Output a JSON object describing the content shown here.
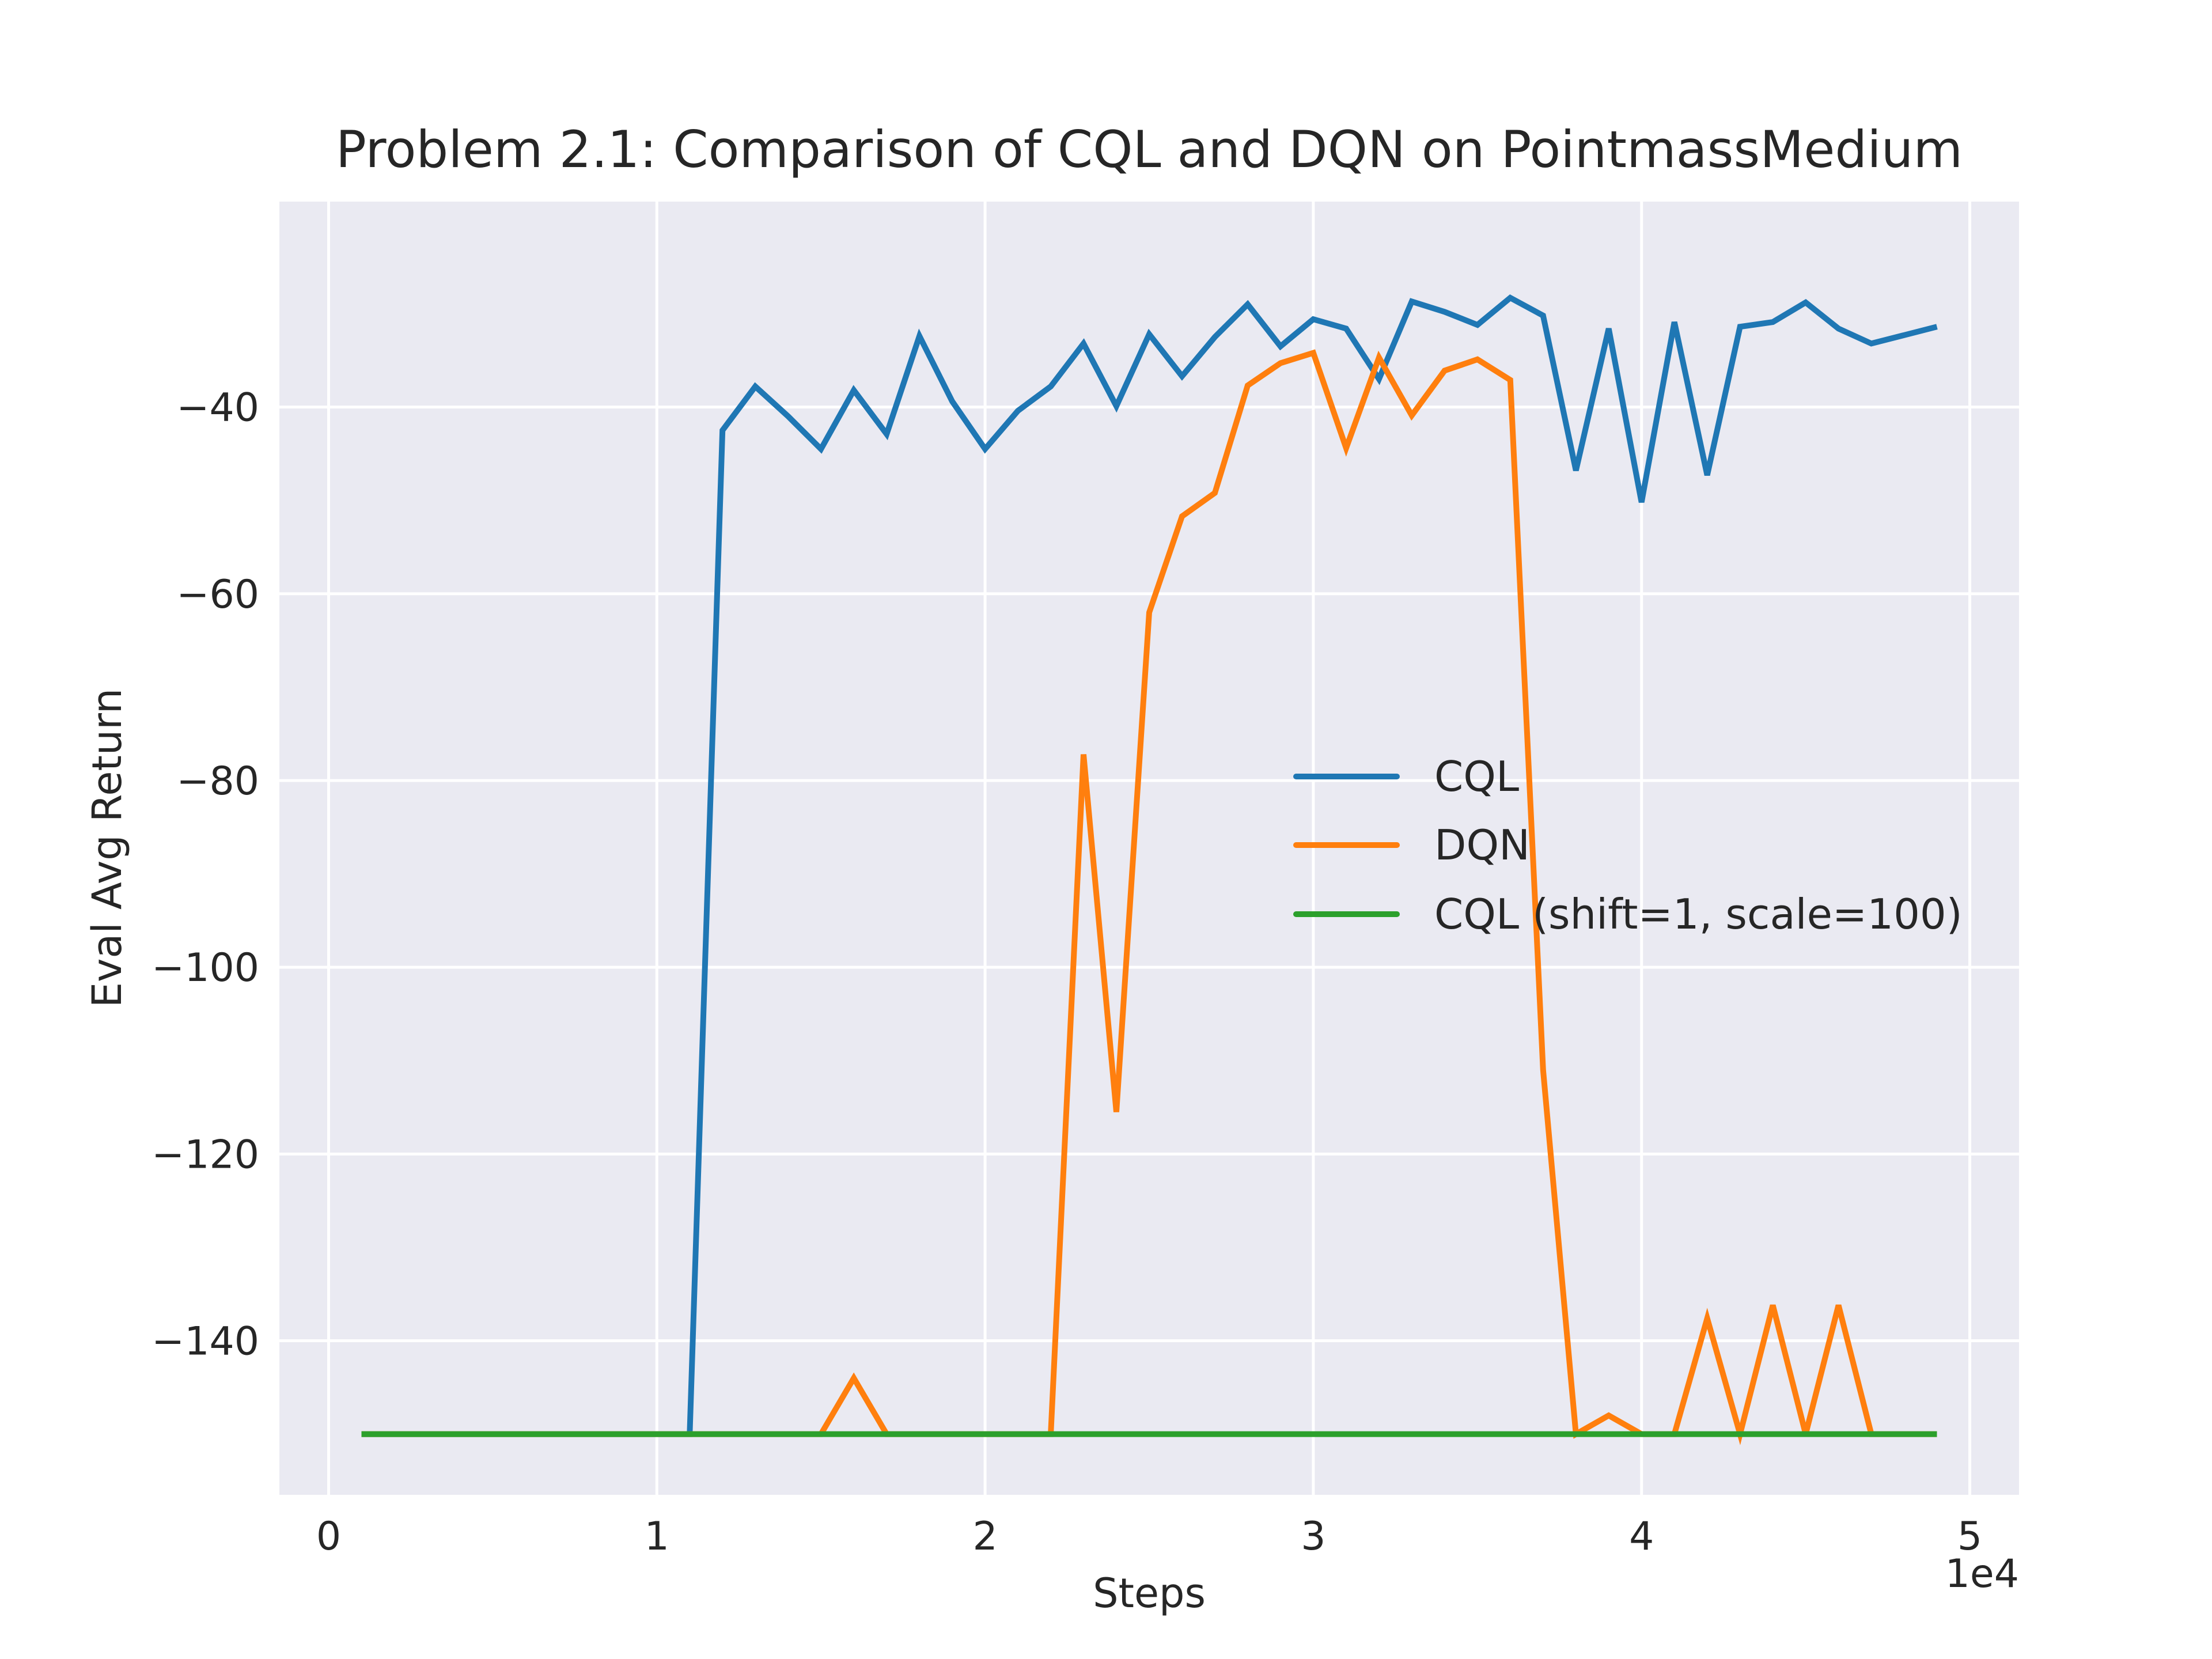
{
  "chart_data": {
    "type": "line",
    "title": "Problem 2.1: Comparison of CQL and DQN on PointmassMedium",
    "xlabel": "Steps",
    "ylabel": "Eval Avg Return",
    "x_offset_text": "1e4",
    "xlim": [
      -0.15,
      5.15
    ],
    "ylim": [
      -156.5,
      -18
    ],
    "xticks": [
      0,
      1,
      2,
      3,
      4,
      5
    ],
    "xtick_labels": [
      "0",
      "1",
      "2",
      "3",
      "4",
      "5"
    ],
    "yticks": [
      -140,
      -120,
      -100,
      -80,
      -60,
      -40
    ],
    "ytick_labels": [
      "−140",
      "−120",
      "−100",
      "−80",
      "−60",
      "−40"
    ],
    "grid": true,
    "legend_position": "center-right",
    "x": [
      0.1,
      0.2,
      0.3,
      0.4,
      0.5,
      0.6,
      0.7,
      0.8,
      0.9,
      1.0,
      1.1,
      1.2,
      1.3,
      1.4,
      1.5,
      1.6,
      1.7,
      1.8,
      1.9,
      2.0,
      2.1,
      2.2,
      2.3,
      2.4,
      2.5,
      2.6,
      2.7,
      2.8,
      2.9,
      3.0,
      3.1,
      3.2,
      3.3,
      3.4,
      3.5,
      3.6,
      3.7,
      3.8,
      3.9,
      4.0,
      4.1,
      4.2,
      4.3,
      4.4,
      4.5,
      4.6,
      4.7,
      4.8,
      4.9
    ],
    "series": [
      {
        "name": "CQL",
        "color": "#1f77b4",
        "values": [
          -150,
          -150,
          -150,
          -150,
          -150,
          -150,
          -150,
          -150,
          -150,
          -150,
          -150,
          -42.5,
          -37.8,
          -41.0,
          -44.5,
          -38.2,
          -42.9,
          -32.4,
          -39.4,
          -44.5,
          -40.4,
          -37.8,
          -33.2,
          -39.9,
          -32.2,
          -36.7,
          -32.5,
          -29.0,
          -33.5,
          -30.6,
          -31.6,
          -37.0,
          -28.7,
          -29.8,
          -31.2,
          -28.3,
          -30.2,
          -46.8,
          -31.6,
          -50.2,
          -30.9,
          -47.3,
          -31.4,
          -30.9,
          -28.8,
          -31.6,
          -33.2,
          -32.3,
          -31.4
        ]
      },
      {
        "name": "DQN",
        "color": "#ff7f0e",
        "values": [
          -150,
          -150,
          -150,
          -150,
          -150,
          -150,
          -150,
          -150,
          -150,
          -150,
          -150,
          -150,
          -150,
          -150,
          -150,
          -144.0,
          -150,
          -150,
          -150,
          -150,
          -150,
          -150,
          -77.2,
          -115.5,
          -62.0,
          -51.7,
          -49.2,
          -37.7,
          -35.3,
          -34.2,
          -44.4,
          -34.7,
          -40.9,
          -36.1,
          -34.9,
          -37.1,
          -111.0,
          -150,
          -148.0,
          -150,
          -150,
          -137.6,
          -150,
          -136.2,
          -150,
          -136.2,
          -150,
          -150,
          -150
        ]
      },
      {
        "name": "CQL (shift=1, scale=100)",
        "color": "#2ca02c",
        "values": [
          -150,
          -150,
          -150,
          -150,
          -150,
          -150,
          -150,
          -150,
          -150,
          -150,
          -150,
          -150,
          -150,
          -150,
          -150,
          -150,
          -150,
          -150,
          -150,
          -150,
          -150,
          -150,
          -150,
          -150,
          -150,
          -150,
          -150,
          -150,
          -150,
          -150,
          -150,
          -150,
          -150,
          -150,
          -150,
          -150,
          -150,
          -150,
          -150,
          -150,
          -150,
          -150,
          -150,
          -150,
          -150,
          -150,
          -150,
          -150,
          -150
        ]
      }
    ],
    "colors": {
      "plot_background": "#eaeaf2",
      "grid": "#ffffff",
      "text": "#262626"
    }
  }
}
